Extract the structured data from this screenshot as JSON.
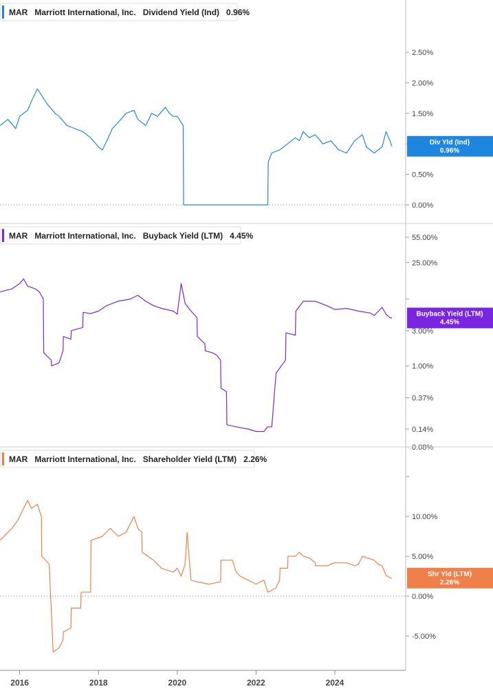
{
  "chart_data": [
    {
      "type": "line",
      "ticker": "MAR",
      "company": "Marriott International, Inc.",
      "metric": "Dividend Yield (Ind)",
      "current": "0.96%",
      "badge": [
        "Div Yld (Ind)",
        "0.96%"
      ],
      "color": "#1f86e0",
      "scale": "linear",
      "yticks": [
        0,
        0.5,
        1.0,
        1.5,
        2.0,
        2.5
      ],
      "ytick_labels": [
        "0.00%",
        "0.50%",
        "",
        "1.50%",
        "2.00%",
        "2.50%"
      ],
      "baseline": 0,
      "x": [
        2015.5,
        2015.7,
        2015.9,
        2016.0,
        2016.2,
        2016.3,
        2016.45,
        2016.5,
        2016.7,
        2016.9,
        2017.0,
        2017.2,
        2017.4,
        2017.6,
        2017.8,
        2018.0,
        2018.1,
        2018.25,
        2018.35,
        2018.5,
        2018.7,
        2018.9,
        2019.0,
        2019.2,
        2019.35,
        2019.5,
        2019.7,
        2019.8,
        2019.9,
        2020.0,
        2020.1,
        2020.15,
        2020.16,
        2022.3,
        2022.31,
        2022.4,
        2022.6,
        2022.8,
        2023.0,
        2023.1,
        2023.2,
        2023.35,
        2023.5,
        2023.7,
        2023.9,
        2024.1,
        2024.3,
        2024.5,
        2024.6,
        2024.7,
        2024.8,
        2025.0,
        2025.2,
        2025.3,
        2025.4,
        2025.45
      ],
      "y": [
        1.3,
        1.4,
        1.25,
        1.45,
        1.55,
        1.7,
        1.9,
        1.85,
        1.65,
        1.5,
        1.45,
        1.3,
        1.25,
        1.2,
        1.1,
        0.95,
        0.9,
        1.1,
        1.25,
        1.35,
        1.5,
        1.55,
        1.4,
        1.3,
        1.5,
        1.45,
        1.6,
        1.5,
        1.45,
        1.45,
        1.35,
        1.3,
        0.0,
        0.0,
        0.7,
        0.85,
        0.9,
        1.0,
        1.1,
        1.05,
        1.2,
        1.1,
        1.15,
        1.0,
        1.05,
        0.9,
        0.85,
        1.05,
        1.1,
        1.15,
        0.95,
        0.85,
        0.95,
        1.2,
        1.05,
        0.96
      ]
    },
    {
      "type": "line",
      "ticker": "MAR",
      "company": "Marriott International, Inc.",
      "metric": "Buyback Yield (LTM)",
      "current": "4.45%",
      "badge": [
        "Buyback Yield (LTM)",
        "4.45%"
      ],
      "color": "#7a25e0",
      "scale": "log",
      "yticks": [
        0.08,
        0.14,
        0.37,
        1.0,
        3.0,
        8.0,
        25.0,
        55.0
      ],
      "ytick_labels": [
        "0.08%",
        "0.14%",
        "0.37%",
        "1.00%",
        "3.00%",
        "",
        "25.00%",
        "55.00%"
      ],
      "x": [
        2015.5,
        2015.8,
        2016.0,
        2016.1,
        2016.2,
        2016.4,
        2016.5,
        2016.6,
        2016.61,
        2016.8,
        2016.81,
        2017.0,
        2017.1,
        2017.11,
        2017.3,
        2017.31,
        2017.5,
        2017.6,
        2017.61,
        2017.8,
        2018.0,
        2018.2,
        2018.5,
        2018.8,
        2019.0,
        2019.2,
        2019.4,
        2019.6,
        2019.9,
        2020.0,
        2020.1,
        2020.2,
        2020.35,
        2020.5,
        2020.51,
        2020.7,
        2020.71,
        2020.9,
        2021.0,
        2021.1,
        2021.11,
        2021.25,
        2021.26,
        2021.5,
        2021.8,
        2022.0,
        2022.2,
        2022.3,
        2022.4,
        2022.5,
        2022.51,
        2022.75,
        2022.76,
        2023.0,
        2023.01,
        2023.2,
        2023.5,
        2023.8,
        2024.0,
        2024.3,
        2024.6,
        2024.9,
        2025.0,
        2025.2,
        2025.3,
        2025.4,
        2025.45
      ],
      "y": [
        10,
        11,
        13,
        15,
        12,
        11,
        10,
        8,
        1.5,
        1.2,
        1.0,
        1.1,
        1.6,
        2.5,
        2.3,
        3,
        3.2,
        3.3,
        5.3,
        5.1,
        5.5,
        6.5,
        7.5,
        8.0,
        9.0,
        7.5,
        6.5,
        6.0,
        5.5,
        5.0,
        13,
        7,
        5.5,
        4.5,
        2.5,
        2.0,
        1.6,
        1.5,
        1.4,
        1.2,
        0.5,
        0.45,
        0.16,
        0.15,
        0.14,
        0.13,
        0.13,
        0.15,
        0.15,
        0.7,
        0.8,
        1.2,
        2.8,
        2.6,
        5.5,
        7.5,
        7.5,
        6.5,
        5.8,
        6.0,
        5.5,
        5.2,
        4.8,
        6.2,
        5.0,
        4.5,
        4.45
      ]
    },
    {
      "type": "line",
      "ticker": "MAR",
      "company": "Marriott International, Inc.",
      "metric": "Shareholder Yield (LTM)",
      "current": "2.26%",
      "badge": [
        "Shr Yld (LTM)",
        "2.26%"
      ],
      "color": "#f0804a",
      "scale": "linear",
      "yticks": [
        -5,
        0,
        5,
        10,
        15
      ],
      "ytick_labels": [
        "-5.00%",
        "0.00%",
        "5.00%",
        "10.00%",
        ""
      ],
      "baseline": 0,
      "x": [
        2015.5,
        2015.8,
        2015.95,
        2016.1,
        2016.2,
        2016.3,
        2016.45,
        2016.55,
        2016.56,
        2016.75,
        2016.85,
        2017.0,
        2017.1,
        2017.11,
        2017.3,
        2017.31,
        2017.55,
        2017.56,
        2017.8,
        2017.81,
        2018.1,
        2018.3,
        2018.5,
        2018.7,
        2018.9,
        2019.0,
        2019.1,
        2019.11,
        2019.4,
        2019.6,
        2019.9,
        2020.0,
        2020.1,
        2020.2,
        2020.25,
        2020.35,
        2020.5,
        2020.8,
        2021.0,
        2021.1,
        2021.11,
        2021.4,
        2021.5,
        2021.6,
        2021.8,
        2022.0,
        2022.2,
        2022.3,
        2022.31,
        2022.5,
        2022.6,
        2022.61,
        2022.8,
        2022.81,
        2023.0,
        2023.1,
        2023.2,
        2023.35,
        2023.5,
        2023.51,
        2023.8,
        2024.0,
        2024.3,
        2024.5,
        2024.6,
        2024.7,
        2025.0,
        2025.1,
        2025.2,
        2025.3,
        2025.4,
        2025.45
      ],
      "y": [
        7,
        8.5,
        9.5,
        11,
        12,
        11,
        11.5,
        10,
        5,
        4,
        -7,
        -6.5,
        -5.5,
        -4.5,
        -4,
        -1.5,
        -1.5,
        0.5,
        0.5,
        7,
        7.5,
        8.5,
        7.5,
        8,
        10,
        8.5,
        8,
        5.5,
        4.5,
        3.5,
        3,
        3.5,
        2.5,
        4,
        8,
        2,
        1.8,
        1.5,
        1.7,
        1.8,
        4.5,
        4.5,
        3,
        2.5,
        2,
        1.5,
        2,
        0.5,
        0.5,
        1,
        2,
        3.5,
        3.5,
        5,
        5,
        5.5,
        5,
        4.8,
        4.2,
        3.8,
        3.8,
        4.2,
        4.2,
        3.8,
        4,
        5,
        4.5,
        4,
        3.8,
        2.6,
        2.3,
        2.26
      ]
    }
  ],
  "x_axis": {
    "range": [
      2015.55,
      2025.6
    ],
    "ticks": [
      2016,
      2018,
      2020,
      2022,
      2024
    ],
    "labels": [
      "2016",
      "2018",
      "2020",
      "2022",
      "2024"
    ]
  }
}
